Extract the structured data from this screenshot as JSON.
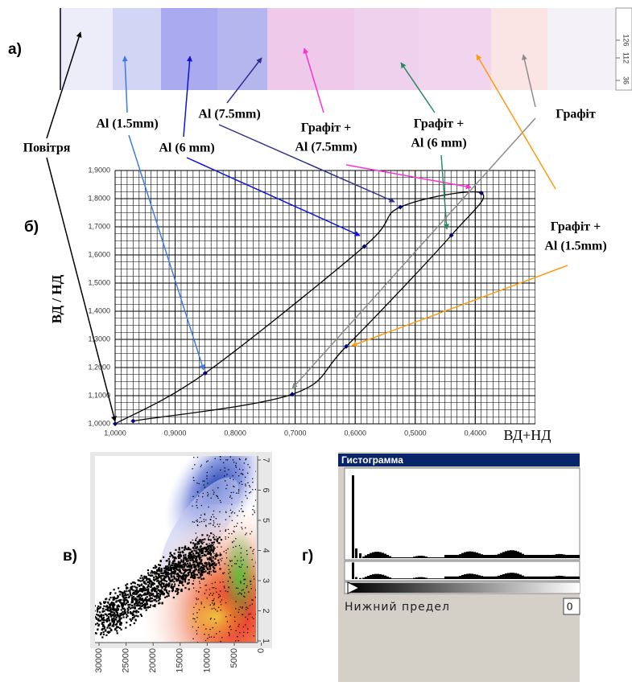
{
  "panel_labels": {
    "a": "a)",
    "b": "б)",
    "v": "в)",
    "g": "г)"
  },
  "strip": {
    "ruler_labels": [
      "126",
      "112",
      "36"
    ]
  },
  "annotations": [
    {
      "lines": [
        "Повітря"
      ]
    },
    {
      "lines": [
        "Al (1.5mm)"
      ]
    },
    {
      "lines": [
        "Al (6 mm)"
      ]
    },
    {
      "lines": [
        "Al (7.5mm)"
      ]
    },
    {
      "lines": [
        "Графіт +",
        "Al (7.5mm)"
      ]
    },
    {
      "lines": [
        "Графіт +",
        "Al (6 mm)"
      ]
    },
    {
      "lines": [
        "Графіт"
      ]
    },
    {
      "lines": [
        "Графіт +",
        "Al (1.5mm)"
      ]
    }
  ],
  "chart_data": {
    "type": "line",
    "xlabel": "ВД+НД",
    "ylabel": "ВД / НД",
    "x": [
      1.0,
      0.85,
      0.585,
      0.525,
      0.39,
      0.44,
      0.615,
      0.705,
      0.97
    ],
    "values": [
      1.0,
      1.18,
      1.63,
      1.77,
      1.82,
      1.67,
      1.275,
      1.105,
      1.01
    ],
    "color": "#000000",
    "marker_color": "#000080",
    "xlim": [
      1.0,
      0.3
    ],
    "ylim": [
      1.0,
      1.9
    ],
    "xticks": [
      {
        "value": 1.0,
        "label": "1,0000"
      },
      {
        "value": 0.9,
        "label": "0,9000"
      },
      {
        "value": 0.8,
        "label": "0,8000"
      },
      {
        "value": 0.7,
        "label": "0,7000"
      },
      {
        "value": 0.6,
        "label": "0,6000"
      },
      {
        "value": 0.5,
        "label": "0,5000"
      },
      {
        "value": 0.4,
        "label": "0,4000"
      }
    ],
    "yticks": [
      {
        "value": 1.0,
        "label": "1,0000"
      },
      {
        "value": 1.1,
        "label": "1,1000"
      },
      {
        "value": 1.2,
        "label": "1,2000"
      },
      {
        "value": 1.3,
        "label": "1,3000"
      },
      {
        "value": 1.4,
        "label": "1,4000"
      },
      {
        "value": 1.5,
        "label": "1,5000"
      },
      {
        "value": 1.6,
        "label": "1,6000"
      },
      {
        "value": 1.7,
        "label": "1,7000"
      },
      {
        "value": 1.8,
        "label": "1,8000"
      },
      {
        "value": 1.9,
        "label": "1,9000"
      }
    ],
    "grid": true
  },
  "heatmap": {
    "xticks": [
      30000,
      25000,
      20000,
      15000,
      10000,
      5000,
      0
    ],
    "yticks": [
      1,
      2,
      3,
      4,
      5,
      6,
      7
    ]
  },
  "histogram_window": {
    "title": "Гистограмма",
    "lower_limit_label": "Нижний предел",
    "input_value": "0"
  }
}
